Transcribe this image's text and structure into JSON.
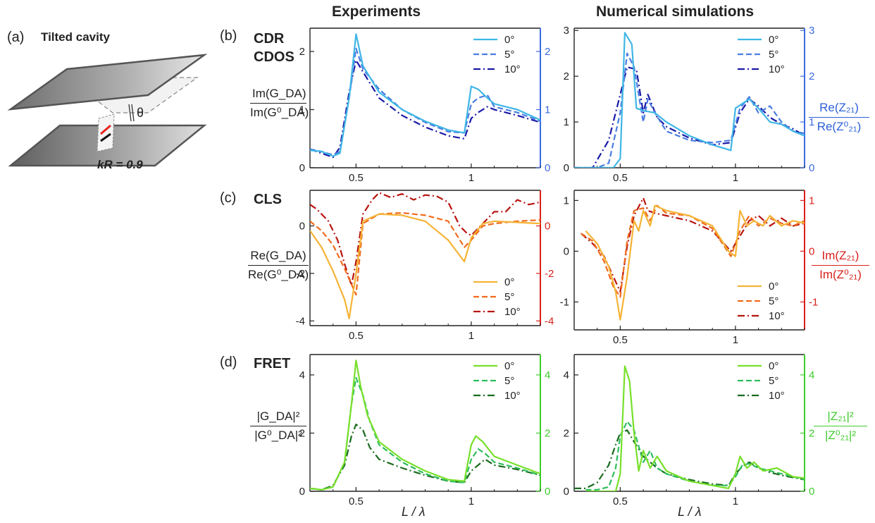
{
  "headers": {
    "experiments": "Experiments",
    "simulations": "Numerical simulations"
  },
  "panel_labels": {
    "a": "(a)",
    "b": "(b)",
    "c": "(c)",
    "d": "(d)"
  },
  "panel_a": {
    "title": "Tilted cavity",
    "kr_label": "kR = 0.9",
    "theta": "θ"
  },
  "panel_titles": {
    "b_line1": "CDR",
    "b_line2": "CDOS",
    "c": "CLS",
    "d": "FRET"
  },
  "ylabels": {
    "b_left": {
      "num": "Im(G_DA)",
      "den": "Im(G⁰_DA)"
    },
    "b_right": {
      "num": "Re(Z₂₁)",
      "den": "Re(Z⁰₂₁)"
    },
    "c_left": {
      "num": "Re(G_DA)",
      "den": "Re(G⁰_DA)"
    },
    "c_right": {
      "num": "Im(Z₂₁)",
      "den": "Im(Z⁰₂₁)"
    },
    "d_left": {
      "num": "|G_DA|²",
      "den": "|G⁰_DA|²"
    },
    "d_right": {
      "num": "|Z₂₁|²",
      "den": "|Z⁰₂₁|²"
    }
  },
  "xlabel": "L / λ",
  "legend_labels": [
    "0°",
    "5°",
    "10°"
  ],
  "colors": {
    "b": [
      "#3fb6e6",
      "#4a7de0",
      "#1a1aa8"
    ],
    "c": [
      "#f5b335",
      "#f06a1c",
      "#b8140f"
    ],
    "d": [
      "#77e02a",
      "#2ebd5c",
      "#1a6b1e"
    ],
    "axis_b": "#3a6ae0",
    "axis_c": "#d8201a",
    "axis_d": "#3ccd2a"
  },
  "chart_data": [
    {
      "type": "line",
      "id": "b-exp",
      "xlim": [
        0.3,
        1.3
      ],
      "ylim": [
        0,
        2.4
      ],
      "yticks": [
        0,
        1,
        2
      ],
      "xticks": [
        0.5,
        1
      ],
      "series": [
        {
          "name": "0°",
          "x": [
            0.3,
            0.35,
            0.4,
            0.43,
            0.47,
            0.5,
            0.53,
            0.6,
            0.7,
            0.8,
            0.9,
            0.97,
            1.0,
            1.03,
            1.07,
            1.1,
            1.15,
            1.2,
            1.3
          ],
          "y": [
            0.3,
            0.28,
            0.2,
            0.25,
            1.2,
            2.3,
            1.75,
            1.3,
            1.0,
            0.8,
            0.65,
            0.6,
            1.4,
            1.35,
            1.2,
            1.1,
            1.05,
            1.0,
            0.82
          ]
        },
        {
          "name": "5°",
          "x": [
            0.3,
            0.35,
            0.4,
            0.43,
            0.47,
            0.5,
            0.53,
            0.6,
            0.7,
            0.8,
            0.9,
            0.97,
            1.0,
            1.03,
            1.07,
            1.1,
            1.15,
            1.2,
            1.3
          ],
          "y": [
            0.32,
            0.28,
            0.22,
            0.28,
            1.2,
            2.05,
            1.7,
            1.35,
            1.0,
            0.78,
            0.62,
            0.6,
            1.1,
            1.2,
            1.25,
            1.05,
            1.0,
            0.95,
            0.8
          ]
        },
        {
          "name": "10°",
          "x": [
            0.3,
            0.35,
            0.4,
            0.43,
            0.47,
            0.5,
            0.53,
            0.6,
            0.7,
            0.8,
            0.9,
            0.97,
            1.0,
            1.03,
            1.07,
            1.1,
            1.15,
            1.2,
            1.3
          ],
          "y": [
            0.32,
            0.25,
            0.18,
            0.35,
            1.3,
            1.85,
            1.65,
            1.2,
            0.9,
            0.7,
            0.55,
            0.5,
            0.85,
            0.95,
            1.05,
            1.0,
            0.95,
            0.9,
            0.78
          ]
        }
      ]
    },
    {
      "type": "line",
      "id": "b-sim",
      "xlim": [
        0.3,
        1.3
      ],
      "ylim": [
        0,
        3.05
      ],
      "yticks": [
        0,
        1,
        2,
        3
      ],
      "xticks": [
        0.5,
        1
      ],
      "series": [
        {
          "name": "0°",
          "x": [
            0.3,
            0.4,
            0.47,
            0.5,
            0.52,
            0.55,
            0.57,
            0.6,
            0.65,
            0.7,
            0.8,
            0.9,
            0.98,
            1.0,
            1.03,
            1.06,
            1.1,
            1.15,
            1.2,
            1.25,
            1.3
          ],
          "y": [
            0,
            0,
            0,
            0.2,
            2.95,
            2.7,
            1.3,
            1.25,
            1.2,
            1.0,
            0.7,
            0.5,
            0.38,
            1.3,
            1.4,
            1.5,
            1.3,
            1.0,
            0.95,
            0.8,
            0.7
          ]
        },
        {
          "name": "5°",
          "x": [
            0.3,
            0.4,
            0.45,
            0.5,
            0.53,
            0.56,
            0.6,
            0.62,
            0.65,
            0.7,
            0.8,
            0.9,
            0.98,
            1.02,
            1.06,
            1.1,
            1.15,
            1.2,
            1.25,
            1.3
          ],
          "y": [
            0,
            0,
            0.1,
            1.2,
            2.5,
            2.2,
            1.0,
            1.5,
            1.2,
            0.8,
            0.6,
            0.55,
            0.6,
            1.3,
            1.55,
            1.2,
            1.35,
            1.0,
            0.8,
            0.75
          ]
        },
        {
          "name": "10°",
          "x": [
            0.3,
            0.38,
            0.45,
            0.5,
            0.53,
            0.57,
            0.6,
            0.62,
            0.66,
            0.7,
            0.8,
            0.9,
            0.98,
            1.02,
            1.06,
            1.1,
            1.15,
            1.2,
            1.25,
            1.3
          ],
          "y": [
            0,
            0,
            0.6,
            1.6,
            2.2,
            2.15,
            1.2,
            1.6,
            1.1,
            0.9,
            0.65,
            0.5,
            0.55,
            1.2,
            1.5,
            1.35,
            1.1,
            0.95,
            0.85,
            0.7
          ]
        }
      ]
    },
    {
      "type": "line",
      "id": "c-exp",
      "xlim": [
        0.3,
        1.3
      ],
      "ylim": [
        -4.2,
        1.5
      ],
      "yticks": [
        -4,
        -2,
        0
      ],
      "xticks": [
        0.5,
        1
      ],
      "series": [
        {
          "name": "0°",
          "x": [
            0.3,
            0.35,
            0.4,
            0.45,
            0.47,
            0.5,
            0.53,
            0.6,
            0.7,
            0.8,
            0.9,
            0.97,
            1.0,
            1.05,
            1.1,
            1.2,
            1.3
          ],
          "y": [
            -0.2,
            -0.9,
            -1.9,
            -3.1,
            -3.9,
            -2.0,
            0.2,
            0.5,
            0.45,
            0.2,
            -0.6,
            -1.5,
            -0.5,
            0.1,
            0.2,
            0.15,
            0.1
          ]
        },
        {
          "name": "5°",
          "x": [
            0.3,
            0.35,
            0.4,
            0.45,
            0.5,
            0.53,
            0.6,
            0.7,
            0.8,
            0.9,
            0.97,
            1.0,
            1.05,
            1.1,
            1.2,
            1.3
          ],
          "y": [
            0.2,
            -0.2,
            -0.8,
            -1.8,
            -2.9,
            0.1,
            0.5,
            0.55,
            0.45,
            0.2,
            -0.9,
            -0.6,
            0.0,
            0.1,
            0.2,
            0.25
          ]
        },
        {
          "name": "10°",
          "x": [
            0.3,
            0.33,
            0.38,
            0.42,
            0.45,
            0.48,
            0.5,
            0.53,
            0.57,
            0.6,
            0.65,
            0.7,
            0.75,
            0.8,
            0.85,
            0.9,
            0.95,
            0.98,
            1.0,
            1.05,
            1.1,
            1.15,
            1.2,
            1.25,
            1.3
          ],
          "y": [
            0.9,
            0.7,
            0.2,
            -0.6,
            -1.6,
            -2.5,
            -1.5,
            0.5,
            1.1,
            1.4,
            1.2,
            1.35,
            1.1,
            1.3,
            1.25,
            1.0,
            0.0,
            -0.3,
            -0.4,
            0.1,
            0.6,
            0.6,
            1.1,
            0.9,
            1.0
          ]
        }
      ]
    },
    {
      "type": "line",
      "id": "c-sim",
      "xlim": [
        0.3,
        1.3
      ],
      "ylim": [
        -1.55,
        1.2
      ],
      "yticks": [
        -1,
        0,
        1
      ],
      "xticks": [
        0.5,
        1
      ],
      "series": [
        {
          "name": "0°",
          "x": [
            0.35,
            0.4,
            0.45,
            0.48,
            0.5,
            0.53,
            0.56,
            0.58,
            0.6,
            0.63,
            0.65,
            0.7,
            0.8,
            0.9,
            0.97,
            1.0,
            1.02,
            1.05,
            1.08,
            1.12,
            1.15,
            1.2,
            1.25,
            1.3
          ],
          "y": [
            0.4,
            0.15,
            -0.3,
            -0.8,
            -1.35,
            -0.5,
            0.6,
            0.4,
            0.8,
            0.5,
            0.9,
            0.8,
            0.7,
            0.5,
            0.0,
            -0.1,
            0.8,
            0.5,
            0.6,
            0.5,
            0.7,
            0.5,
            0.6,
            0.55
          ]
        },
        {
          "name": "5°",
          "x": [
            0.33,
            0.38,
            0.43,
            0.47,
            0.5,
            0.53,
            0.56,
            0.6,
            0.63,
            0.66,
            0.7,
            0.8,
            0.9,
            0.98,
            1.02,
            1.06,
            1.1,
            1.15,
            1.2,
            1.25,
            1.3
          ],
          "y": [
            0.35,
            0.2,
            -0.2,
            -0.7,
            -0.9,
            0.2,
            0.8,
            0.85,
            0.6,
            0.9,
            0.75,
            0.7,
            0.45,
            -0.1,
            0.4,
            0.7,
            0.5,
            0.65,
            0.55,
            0.5,
            0.6
          ]
        },
        {
          "name": "10°",
          "x": [
            0.33,
            0.38,
            0.43,
            0.47,
            0.5,
            0.53,
            0.56,
            0.6,
            0.62,
            0.65,
            0.7,
            0.8,
            0.9,
            0.98,
            1.02,
            1.06,
            1.1,
            1.15,
            1.2,
            1.25,
            1.3
          ],
          "y": [
            0.35,
            0.15,
            -0.1,
            -0.5,
            -0.8,
            0.1,
            0.7,
            1.05,
            0.8,
            0.75,
            0.7,
            0.6,
            0.4,
            0.0,
            0.3,
            0.6,
            0.7,
            0.5,
            0.65,
            0.5,
            0.55
          ]
        }
      ]
    },
    {
      "type": "line",
      "id": "d-exp",
      "xlim": [
        0.3,
        1.3
      ],
      "ylim": [
        0,
        4.7
      ],
      "yticks": [
        0,
        2,
        4
      ],
      "xticks": [
        0.5,
        1
      ],
      "series": [
        {
          "name": "0°",
          "x": [
            0.3,
            0.35,
            0.4,
            0.45,
            0.48,
            0.5,
            0.52,
            0.55,
            0.6,
            0.7,
            0.8,
            0.9,
            0.97,
            1.0,
            1.02,
            1.05,
            1.1,
            1.2,
            1.3
          ],
          "y": [
            0.1,
            0.05,
            0.15,
            1.0,
            3.0,
            4.5,
            3.6,
            2.6,
            1.7,
            1.1,
            0.7,
            0.4,
            0.35,
            1.6,
            1.9,
            1.7,
            1.2,
            0.9,
            0.6
          ]
        },
        {
          "name": "5°",
          "x": [
            0.3,
            0.35,
            0.4,
            0.45,
            0.48,
            0.5,
            0.53,
            0.56,
            0.6,
            0.7,
            0.8,
            0.9,
            0.97,
            1.0,
            1.03,
            1.06,
            1.1,
            1.2,
            1.3
          ],
          "y": [
            0.1,
            0.05,
            0.15,
            1.0,
            3.0,
            3.9,
            3.3,
            2.4,
            1.6,
            1.0,
            0.6,
            0.35,
            0.3,
            1.1,
            1.45,
            1.3,
            1.0,
            0.8,
            0.55
          ]
        },
        {
          "name": "10°",
          "x": [
            0.3,
            0.35,
            0.4,
            0.45,
            0.48,
            0.5,
            0.53,
            0.56,
            0.6,
            0.7,
            0.8,
            0.9,
            0.97,
            1.0,
            1.03,
            1.06,
            1.1,
            1.2,
            1.3
          ],
          "y": [
            0.1,
            0.05,
            0.2,
            0.9,
            1.9,
            2.3,
            2.1,
            1.5,
            1.1,
            0.8,
            0.55,
            0.35,
            0.3,
            0.7,
            0.9,
            1.1,
            0.9,
            0.75,
            0.55
          ]
        }
      ]
    },
    {
      "type": "line",
      "id": "d-sim",
      "xlim": [
        0.3,
        1.3
      ],
      "ylim": [
        0,
        4.7
      ],
      "yticks": [
        0,
        2,
        4
      ],
      "xticks": [
        0.5,
        1
      ],
      "series": [
        {
          "name": "0°",
          "x": [
            0.35,
            0.4,
            0.45,
            0.48,
            0.5,
            0.52,
            0.54,
            0.56,
            0.58,
            0.6,
            0.63,
            0.66,
            0.7,
            0.8,
            0.9,
            0.97,
            1.0,
            1.02,
            1.05,
            1.08,
            1.12,
            1.18,
            1.25,
            1.3
          ],
          "y": [
            0,
            0,
            0,
            0,
            0.6,
            4.3,
            3.8,
            2.0,
            0.7,
            1.4,
            0.8,
            1.2,
            0.7,
            0.35,
            0.2,
            0.1,
            0.6,
            1.2,
            0.8,
            1.0,
            0.7,
            0.8,
            0.5,
            0.45
          ]
        },
        {
          "name": "5°",
          "x": [
            0.35,
            0.4,
            0.45,
            0.48,
            0.5,
            0.53,
            0.56,
            0.6,
            0.63,
            0.66,
            0.7,
            0.8,
            0.9,
            0.97,
            1.0,
            1.03,
            1.06,
            1.1,
            1.15,
            1.2,
            1.3
          ],
          "y": [
            0.05,
            0.05,
            0.15,
            0.8,
            1.9,
            2.4,
            2.1,
            1.0,
            1.4,
            0.8,
            0.6,
            0.35,
            0.2,
            0.2,
            0.5,
            0.9,
            0.95,
            0.8,
            0.7,
            0.6,
            0.4
          ]
        },
        {
          "name": "10°",
          "x": [
            0.3,
            0.35,
            0.4,
            0.45,
            0.48,
            0.5,
            0.53,
            0.56,
            0.6,
            0.63,
            0.66,
            0.7,
            0.8,
            0.9,
            0.97,
            1.0,
            1.03,
            1.06,
            1.1,
            1.15,
            1.2,
            1.3
          ],
          "y": [
            0.1,
            0.1,
            0.3,
            0.9,
            1.6,
            2.0,
            2.1,
            1.7,
            1.2,
            1.0,
            0.8,
            0.6,
            0.4,
            0.25,
            0.2,
            0.6,
            0.85,
            1.0,
            0.8,
            0.65,
            0.55,
            0.4
          ]
        }
      ]
    }
  ]
}
